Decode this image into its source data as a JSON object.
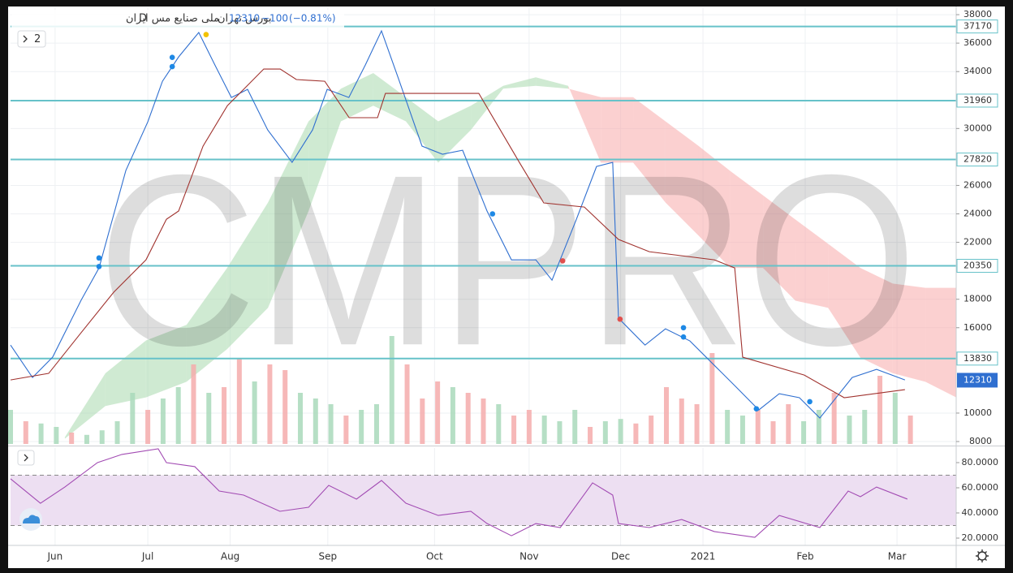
{
  "chart_data": [
    {
      "type": "line",
      "exchange": "بورس تهران",
      "interval": "D",
      "symbol": "ملی صنایع مس ایران",
      "last_price": 12310,
      "change": {
        "value": -100,
        "label": "−100"
      },
      "change_pct": {
        "value": -0.81,
        "label": "(−0.81%)"
      },
      "pane_button": "2",
      "watermark": "CMPRO",
      "xlim": [
        0,
        310
      ],
      "xticks": [
        {
          "value": 14.6,
          "label": "Jun"
        },
        {
          "value": 45,
          "label": "Jul"
        },
        {
          "value": 72,
          "label": "Aug"
        },
        {
          "value": 104,
          "label": "Sep"
        },
        {
          "value": 139,
          "label": "Oct"
        },
        {
          "value": 170,
          "label": "Nov"
        },
        {
          "value": 200,
          "label": "Dec"
        },
        {
          "value": 227,
          "label": "2021"
        },
        {
          "value": 260.5,
          "label": "Feb"
        },
        {
          "value": 290.6,
          "label": "Mar"
        }
      ],
      "ylim": [
        7830,
        38460
      ],
      "yticks": [
        8000,
        10000,
        16000,
        18000,
        22000,
        24000,
        26000,
        30000,
        34000,
        36000,
        38000
      ],
      "grid": true,
      "levels": [
        37170,
        31960,
        27820,
        20350,
        13830
      ],
      "level_color": "#67c2c9",
      "last_color": "#2f6fd0",
      "series": [
        {
          "color": "#2f6fd0",
          "x": [
            0,
            7.2,
            13.8,
            23.1,
            29,
            37.8,
            45,
            49.8,
            55.1,
            61.7,
            67,
            72.4,
            77.7,
            84.3,
            92.3,
            99,
            103.8,
            110.9,
            116.3,
            121.6,
            127,
            134.9,
            141.6,
            148.2,
            156.2,
            164.2,
            172.2,
            177.5,
            185.5,
            192.1,
            197.4,
            199.3,
            208,
            214.7,
            222.7,
            230.7,
            237.4,
            245.3,
            252,
            258.6,
            265.3,
            275.9,
            283.9,
            293.2
          ],
          "values": [
            14780,
            12500,
            13930,
            17920,
            20200,
            27050,
            30470,
            33320,
            35030,
            36750,
            34460,
            32180,
            32750,
            29900,
            27620,
            29900,
            32750,
            32180,
            34460,
            36860,
            33610,
            28760,
            28190,
            28470,
            24200,
            20770,
            20770,
            19340,
            23620,
            27330,
            27620,
            16670,
            14780,
            15920,
            15070,
            13360,
            11930,
            10220,
            11360,
            11080,
            9650,
            12500,
            13070,
            12330
          ]
        },
        {
          "color": "#a0322e",
          "x": [
            0,
            12.5,
            23.1,
            33.8,
            44.4,
            51.1,
            55.1,
            63.1,
            71.1,
            76.4,
            83,
            88.4,
            93.7,
            103,
            111,
            120.3,
            122.9,
            130.9,
            153.5,
            166.8,
            174.8,
            188.1,
            199.3,
            209.4,
            230.7,
            237.4,
            240,
            260.2,
            273.3,
            293.2
          ],
          "values": [
            12330,
            12790,
            15640,
            18490,
            20770,
            23620,
            24200,
            28760,
            31610,
            32750,
            34180,
            34180,
            33440,
            33320,
            30760,
            30760,
            32470,
            32470,
            32470,
            27620,
            24770,
            24480,
            22200,
            21340,
            20770,
            20200,
            13930,
            12670,
            11080,
            11650
          ]
        }
      ],
      "cloud": {
        "up_color": "#a8d8ad",
        "down_color": "#f8a9a9",
        "x": [
          17.8,
          31.1,
          44.4,
          57.7,
          71,
          84.4,
          97.7,
          108.3,
          118.9,
          129.6,
          140.2,
          150.9,
          161.5,
          172.2,
          182.8,
          193.5,
          204.1,
          214.7,
          225.4,
          236,
          246.7,
          257.3,
          268,
          278.6,
          289.2,
          299.9,
          310
        ],
        "span_a": [
          8300,
          12800,
          15100,
          16200,
          20200,
          24800,
          30500,
          32800,
          33900,
          32200,
          30500,
          31600,
          33000,
          33600,
          33000,
          27600,
          27600,
          24800,
          22500,
          20200,
          20200,
          17900,
          17400,
          13900,
          12800,
          12200,
          11100
        ],
        "span_b": [
          8200,
          10500,
          11100,
          12200,
          14500,
          17400,
          24200,
          30500,
          31600,
          30500,
          27600,
          29900,
          32800,
          33000,
          32800,
          32200,
          32200,
          30500,
          28800,
          27000,
          25300,
          23600,
          21900,
          20200,
          19100,
          18800,
          18800
        ]
      },
      "volume": {
        "x": [
          0,
          5,
          10,
          15,
          20,
          25,
          30,
          35,
          40,
          45,
          50,
          55,
          60,
          65,
          70,
          75,
          80,
          85,
          90,
          95,
          100,
          105,
          110,
          115,
          120,
          125,
          130,
          135,
          140,
          145,
          150,
          155,
          160,
          165,
          170,
          175,
          180,
          185,
          190,
          195,
          200,
          205,
          210,
          215,
          220,
          225,
          230,
          235,
          240,
          245,
          250,
          255,
          260,
          265,
          270,
          275,
          280,
          285,
          290,
          295
        ],
        "values": [
          30,
          20,
          18,
          15,
          10,
          8,
          12,
          20,
          45,
          30,
          40,
          50,
          70,
          45,
          50,
          75,
          55,
          70,
          65,
          45,
          40,
          35,
          25,
          30,
          35,
          95,
          70,
          40,
          55,
          50,
          45,
          40,
          35,
          25,
          30,
          25,
          20,
          30,
          15,
          20,
          22,
          18,
          25,
          50,
          40,
          35,
          80,
          30,
          25,
          30,
          20,
          35,
          20,
          30,
          45,
          25,
          30,
          60,
          45,
          25
        ],
        "colors": [
          "#a9d9bb",
          "#f4abab",
          "#a9d9bb",
          "#a9d9bb",
          "#f4abab",
          "#a9d9bb",
          "#a9d9bb",
          "#a9d9bb",
          "#a9d9bb",
          "#f4abab",
          "#a9d9bb",
          "#a9d9bb",
          "#f4abab",
          "#a9d9bb",
          "#f4abab",
          "#f4abab",
          "#a9d9bb",
          "#f4abab",
          "#f4abab",
          "#a9d9bb",
          "#a9d9bb",
          "#a9d9bb",
          "#f4abab",
          "#a9d9bb",
          "#a9d9bb",
          "#a9d9bb",
          "#f4abab",
          "#f4abab",
          "#f4abab",
          "#a9d9bb",
          "#f4abab",
          "#f4abab",
          "#a9d9bb",
          "#f4abab",
          "#f4abab",
          "#a9d9bb",
          "#a9d9bb",
          "#a9d9bb",
          "#f4abab",
          "#a9d9bb",
          "#a9d9bb",
          "#f4abab",
          "#f4abab",
          "#f4abab",
          "#f4abab",
          "#f4abab",
          "#f4abab",
          "#a9d9bb",
          "#a9d9bb",
          "#f4abab",
          "#f4abab",
          "#f4abab",
          "#a9d9bb",
          "#a9d9bb",
          "#f4abab",
          "#a9d9bb",
          "#a9d9bb",
          "#f4abab",
          "#a9d9bb",
          "#f4abab"
        ]
      },
      "markers": {
        "x": [
          29,
          29,
          53,
          53,
          64.1,
          158,
          181,
          199.8,
          220.6,
          220.6,
          244.5,
          262
        ],
        "values": [
          20900,
          20300,
          35000,
          34350,
          36600,
          24000,
          20700,
          16600,
          16000,
          15350,
          10300,
          10800
        ],
        "colors": [
          "#1e88e5",
          "#1e88e5",
          "#1e88e5",
          "#1e88e5",
          "#f2c200",
          "#1e88e5",
          "#e0504d",
          "#e0504d",
          "#1e88e5",
          "#1e88e5",
          "#1e88e5",
          "#1e88e5"
        ]
      }
    },
    {
      "type": "line",
      "ylim": [
        14.2,
        91.6
      ],
      "yticks": [
        {
          "value": 80,
          "label": "80.0000"
        },
        {
          "value": 60,
          "label": "60.0000"
        },
        {
          "value": 40,
          "label": "40.0000"
        },
        {
          "value": 20,
          "label": "20.0000"
        }
      ],
      "band": [
        30,
        70
      ],
      "band_color": "#eddff2",
      "series": [
        {
          "color": "#a24bb3",
          "x": [
            0,
            9.8,
            17.8,
            28.5,
            36.5,
            48.4,
            51.1,
            60.4,
            68.4,
            76.4,
            88.3,
            97.7,
            104.3,
            113.4,
            121.6,
            129.6,
            140.2,
            150.9,
            156.2,
            164.2,
            172.2,
            180.2,
            190.8,
            197.4,
            199.3,
            209.4,
            220,
            230.7,
            244,
            252,
            265.3,
            274.6,
            278.6,
            283.9,
            294
          ],
          "values": [
            67.1,
            47.7,
            60.6,
            80,
            86.5,
            91,
            80,
            76.8,
            57.4,
            54.2,
            41.3,
            44.5,
            61.9,
            51,
            65.8,
            47.7,
            38,
            41.3,
            31.6,
            21.9,
            31.6,
            28.4,
            63.9,
            54.2,
            31.6,
            28.4,
            34.8,
            25.2,
            20.6,
            38,
            28.4,
            57.4,
            52.9,
            60.6,
            51
          ]
        }
      ]
    }
  ]
}
